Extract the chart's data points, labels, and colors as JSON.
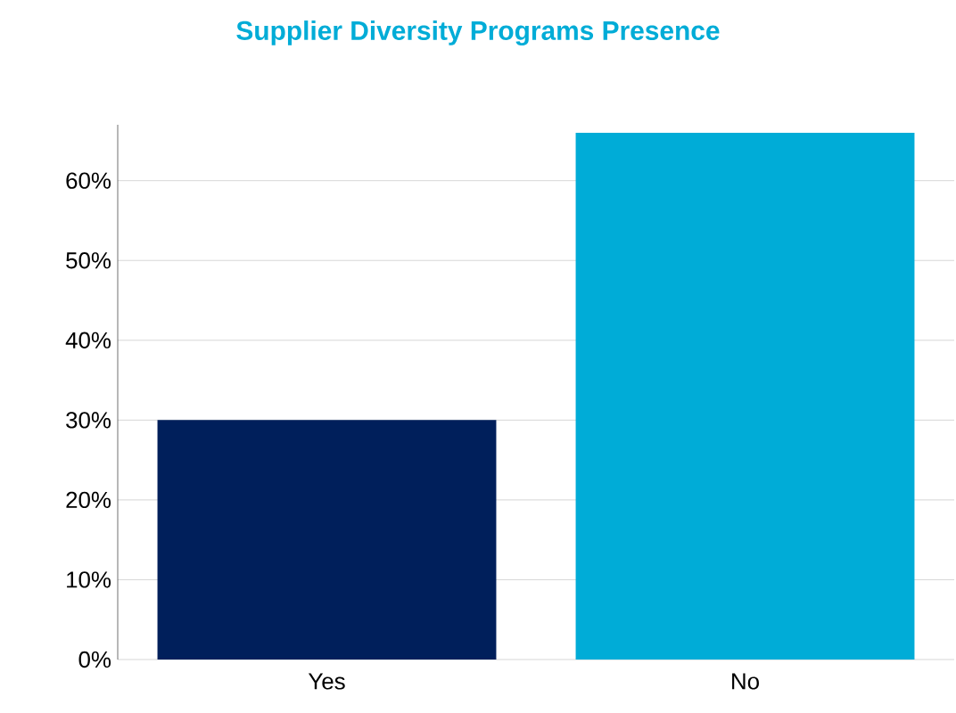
{
  "chart_data": {
    "type": "bar",
    "title": "Supplier Diversity Programs Presence",
    "categories": [
      "Yes",
      "No"
    ],
    "values": [
      30,
      66
    ],
    "colors": [
      "#001f5b",
      "#00acd7"
    ],
    "ylim": [
      0,
      67
    ],
    "yticks": [
      {
        "value": 0,
        "label": "0%"
      },
      {
        "value": 10,
        "label": "10%"
      },
      {
        "value": 20,
        "label": "20%"
      },
      {
        "value": 30,
        "label": "30%"
      },
      {
        "value": 40,
        "label": "40%"
      },
      {
        "value": 50,
        "label": "50%"
      },
      {
        "value": 60,
        "label": "60%"
      }
    ],
    "grid": "y"
  }
}
